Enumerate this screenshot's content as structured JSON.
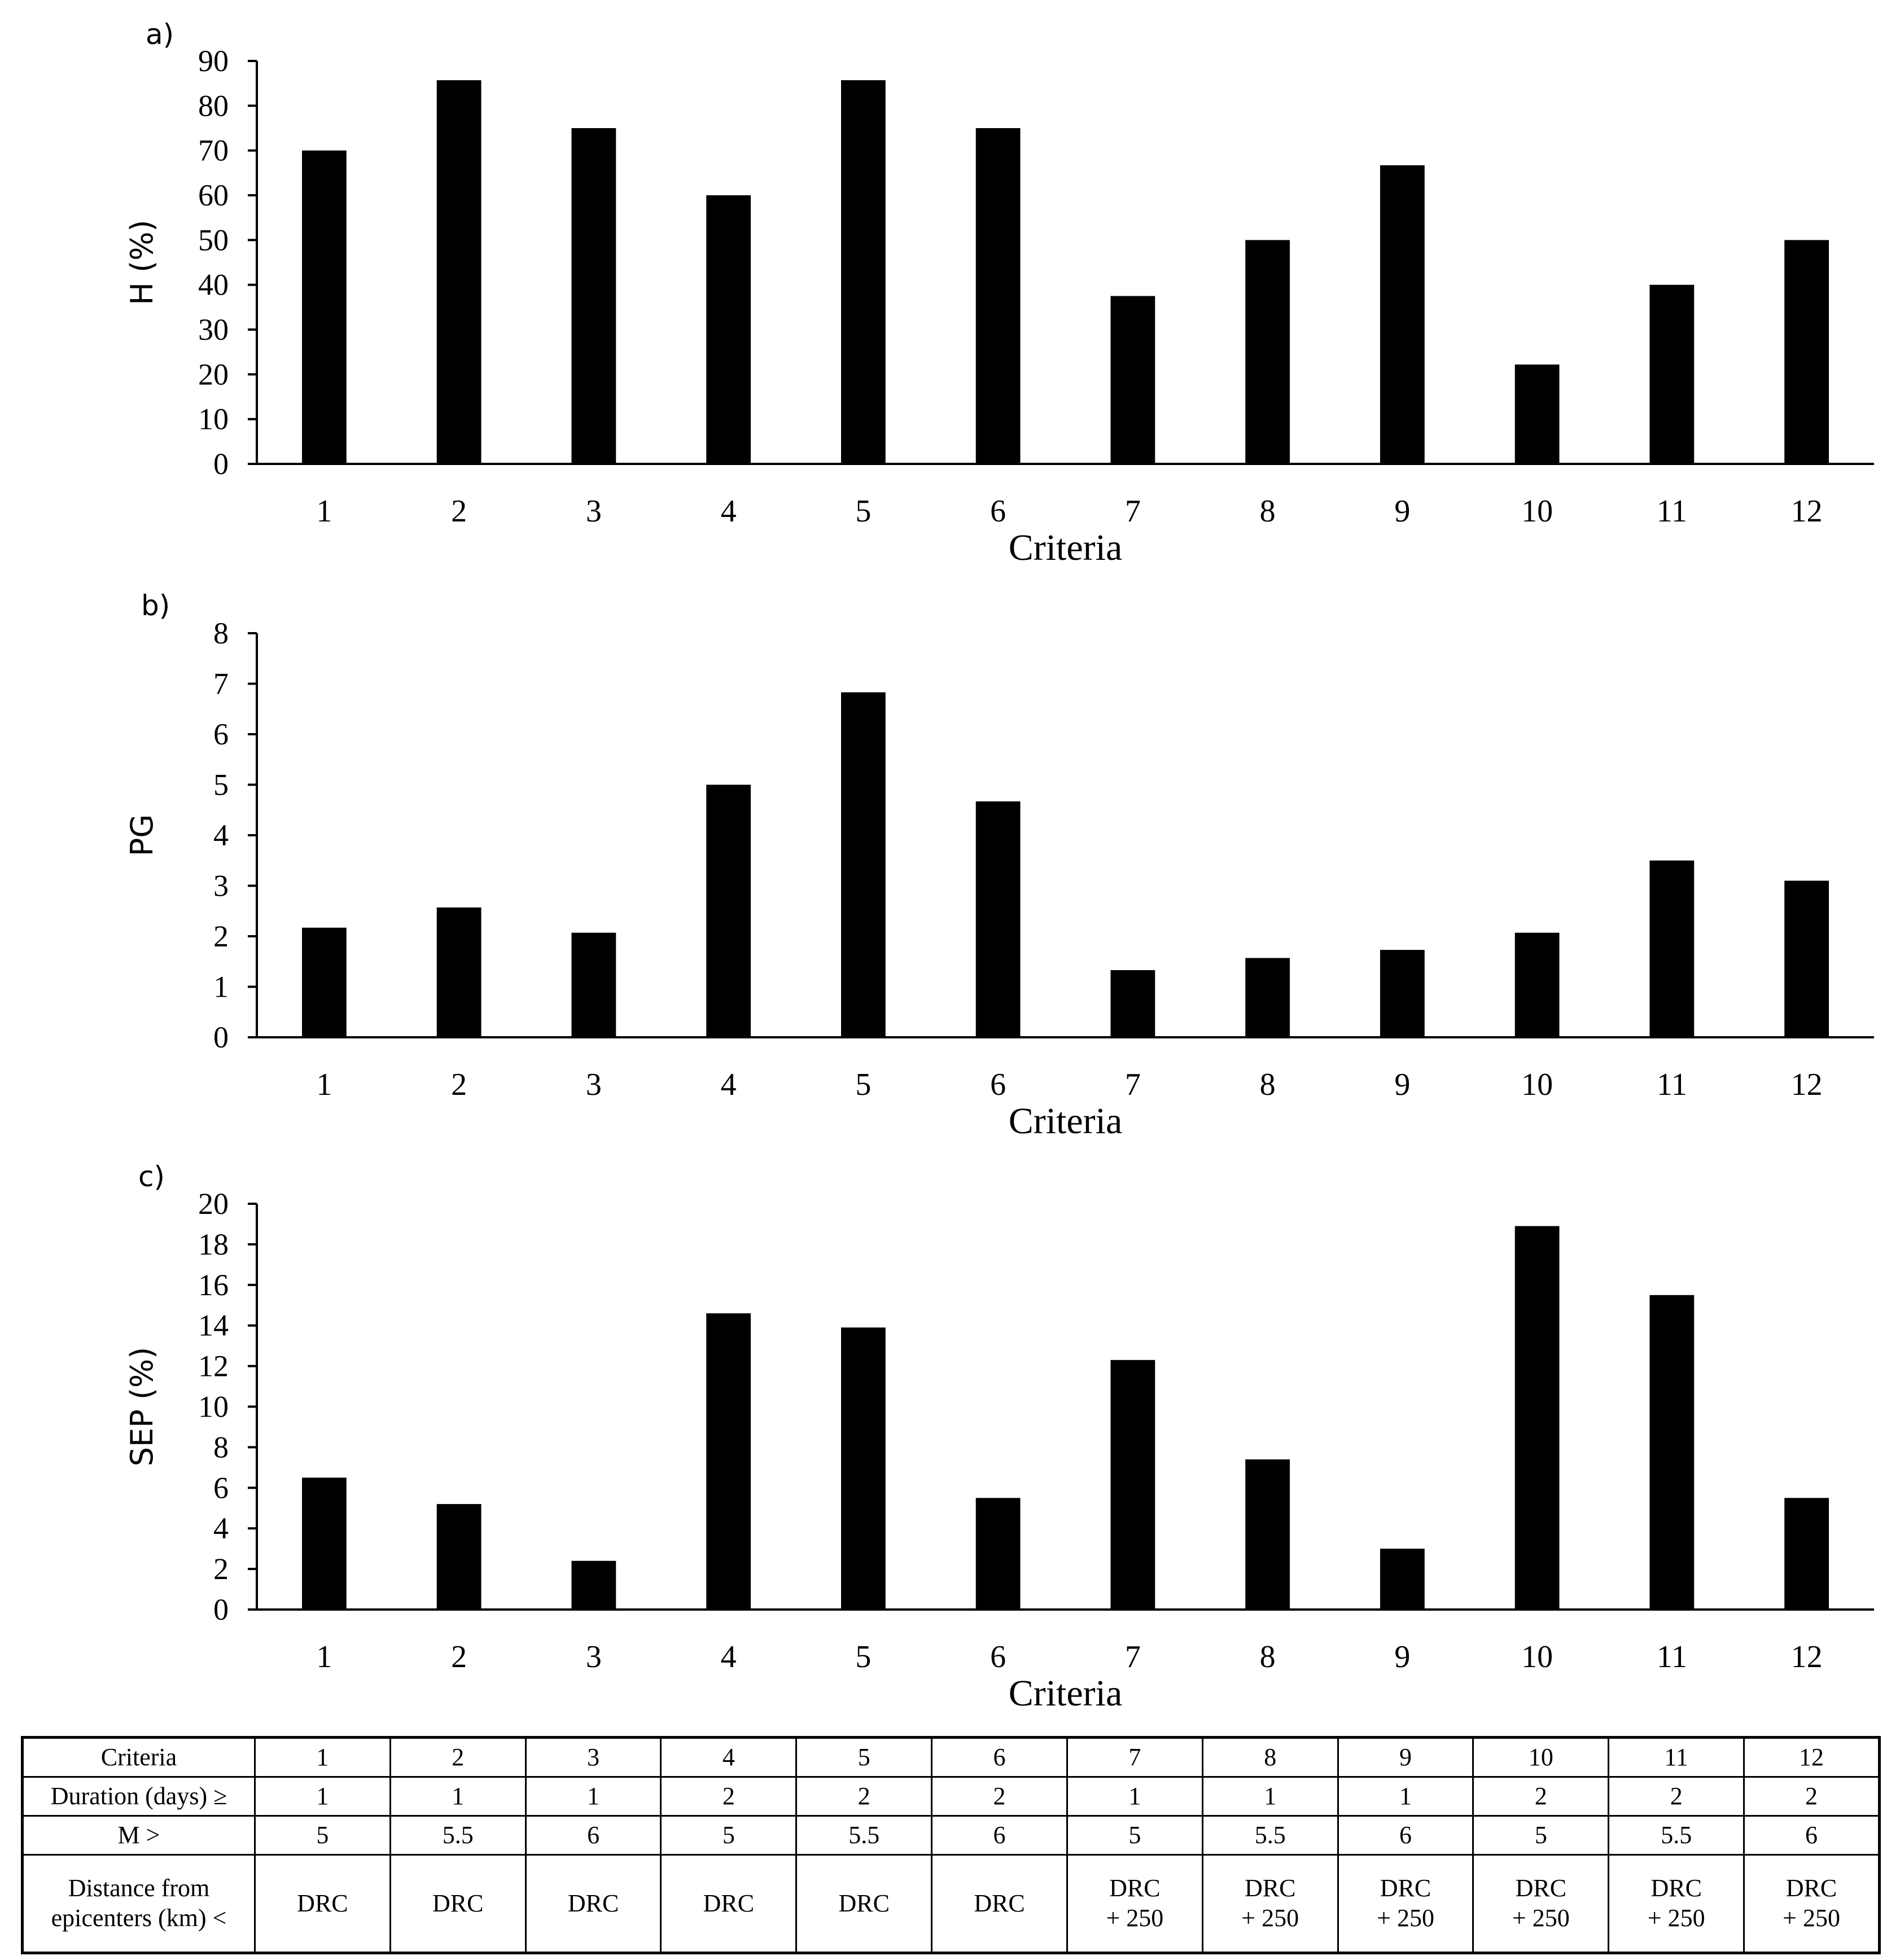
{
  "chart_data": [
    {
      "type": "bar",
      "panel_label": "a)",
      "categories": [
        "1",
        "2",
        "3",
        "4",
        "5",
        "6",
        "7",
        "8",
        "9",
        "10",
        "11",
        "12"
      ],
      "values": [
        70,
        85.7,
        75,
        60,
        85.7,
        75,
        37.5,
        50,
        66.7,
        22.2,
        40,
        50
      ],
      "xlabel": "Criteria",
      "ylabel": "H (%)",
      "ylim": [
        0,
        90
      ],
      "yticks": [
        0,
        10,
        20,
        30,
        40,
        50,
        60,
        70,
        80,
        90
      ],
      "grid": false
    },
    {
      "type": "bar",
      "panel_label": "b)",
      "categories": [
        "1",
        "2",
        "3",
        "4",
        "5",
        "6",
        "7",
        "8",
        "9",
        "10",
        "11",
        "12"
      ],
      "values": [
        2.17,
        2.57,
        2.07,
        5.0,
        6.83,
        4.67,
        1.33,
        1.57,
        1.73,
        2.07,
        3.5,
        3.1
      ],
      "xlabel": "Criteria",
      "ylabel": "PG",
      "ylim": [
        0,
        8
      ],
      "yticks": [
        0,
        1,
        2,
        3,
        4,
        5,
        6,
        7,
        8
      ],
      "grid": false
    },
    {
      "type": "bar",
      "panel_label": "c)",
      "categories": [
        "1",
        "2",
        "3",
        "4",
        "5",
        "6",
        "7",
        "8",
        "9",
        "10",
        "11",
        "12"
      ],
      "values": [
        6.5,
        5.2,
        2.4,
        14.6,
        13.9,
        5.5,
        12.3,
        7.4,
        3.0,
        18.9,
        15.5,
        5.5
      ],
      "xlabel": "Criteria",
      "ylabel": "SEP (%)",
      "ylim": [
        0,
        20
      ],
      "yticks": [
        0,
        2,
        4,
        6,
        8,
        10,
        12,
        14,
        16,
        18,
        20
      ],
      "grid": false
    }
  ],
  "table": {
    "rows": [
      {
        "header": "Criteria",
        "cells": [
          "1",
          "2",
          "3",
          "4",
          "5",
          "6",
          "7",
          "8",
          "9",
          "10",
          "11",
          "12"
        ]
      },
      {
        "header": "Duration (days) ≥",
        "cells": [
          "1",
          "1",
          "1",
          "2",
          "2",
          "2",
          "1",
          "1",
          "1",
          "2",
          "2",
          "2"
        ]
      },
      {
        "header": "M >",
        "cells": [
          "5",
          "5.5",
          "6",
          "5",
          "5.5",
          "6",
          "5",
          "5.5",
          "6",
          "5",
          "5.5",
          "6"
        ]
      },
      {
        "header_lines": [
          "Distance from",
          "epicenters (km) <"
        ],
        "cells": [
          [
            "DRC"
          ],
          [
            "DRC"
          ],
          [
            "DRC"
          ],
          [
            "DRC"
          ],
          [
            "DRC"
          ],
          [
            "DRC"
          ],
          [
            "DRC",
            "+ 250"
          ],
          [
            "DRC",
            "+ 250"
          ],
          [
            "DRC",
            "+ 250"
          ],
          [
            "DRC",
            "+ 250"
          ],
          [
            "DRC",
            "+ 250"
          ],
          [
            "DRC",
            "+ 250"
          ]
        ]
      }
    ]
  }
}
